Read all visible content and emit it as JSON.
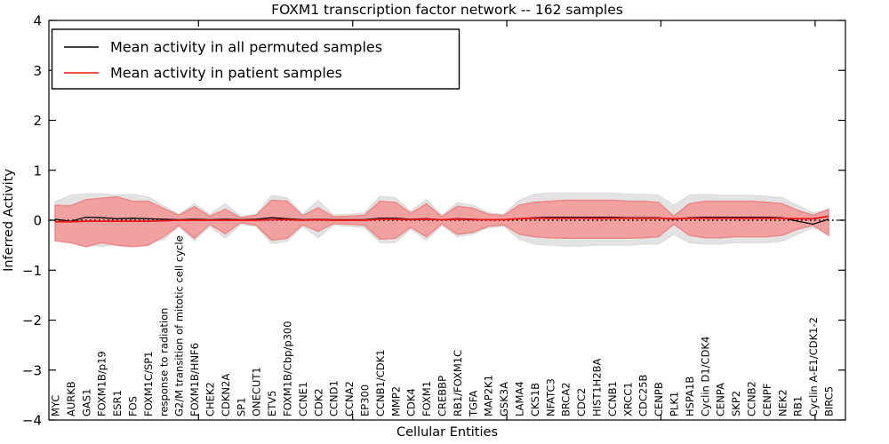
{
  "chart_data": {
    "type": "area",
    "title": "FOXM1 transcription factor network -- 162 samples",
    "xlabel": "Cellular Entities",
    "ylabel": "Inferred Activity",
    "ylim": [
      -4,
      4
    ],
    "yticks": [
      4,
      3,
      2,
      1,
      0,
      -1,
      -2,
      -3,
      -4
    ],
    "grid": false,
    "legend_position": "upper left",
    "zero_line": {
      "y": 0,
      "style": "dotted",
      "color": "#000000"
    },
    "colors": {
      "permuted_band": "#e3e3e3",
      "permuted_band_edge": "#d8d8d8",
      "patient_band": "#f2a1a1",
      "patient_band_edge": "#e98989",
      "permuted_line": "#000000",
      "patient_line": "#f01515"
    },
    "categories": [
      "MYC",
      "AURKB",
      "GAS1",
      "FOXM1B/p19",
      "ESR1",
      "FOS",
      "FOXM1C/SP1",
      "response to radiation",
      "G2/M transition of mitotic cell cycle",
      "FOXM1B/HNF6",
      "CHEK2",
      "CDKN2A",
      "SP1",
      "ONECUT1",
      "ETV5",
      "FOXM1B/Cbp/p300",
      "CCNE1",
      "CDK2",
      "CCND1",
      "CCNA2",
      "EP300",
      "CCNB1/CDK1",
      "MMP2",
      "CDK4",
      "FOXM1",
      "CREBBP",
      "RB1/FOXM1C",
      "TGFA",
      "MAP2K1",
      "GSK3A",
      "LAMA4",
      "CKS1B",
      "NFATC3",
      "BRCA2",
      "CDC2",
      "HIST1H2BA",
      "CCNB1",
      "XRCC1",
      "CDC25B",
      "CENPB",
      "PLK1",
      "HSPA1B",
      "Cyclin D1/CDK4",
      "CENPA",
      "SKP2",
      "CCNB2",
      "CENPF",
      "NEK2",
      "RB1",
      "Cyclin A-E1/CDK1-2",
      "BIRC5"
    ],
    "series": [
      {
        "name": "Permuted samples envelope",
        "kind": "band",
        "upper": [
          0.37,
          0.5,
          0.53,
          0.53,
          0.5,
          0.52,
          0.47,
          0.29,
          0.12,
          0.33,
          0.12,
          0.33,
          0.08,
          0.12,
          0.5,
          0.45,
          0.12,
          0.4,
          0.1,
          0.12,
          0.15,
          0.48,
          0.45,
          0.18,
          0.42,
          0.1,
          0.35,
          0.3,
          0.15,
          0.12,
          0.4,
          0.52,
          0.55,
          0.55,
          0.55,
          0.55,
          0.55,
          0.52,
          0.52,
          0.5,
          0.3,
          0.5,
          0.52,
          0.5,
          0.5,
          0.5,
          0.48,
          0.45,
          0.3,
          0.15,
          0.2
        ],
        "lower": [
          -0.32,
          -0.39,
          -0.48,
          -0.53,
          -0.48,
          -0.5,
          -0.45,
          -0.39,
          -0.13,
          -0.41,
          -0.12,
          -0.36,
          -0.08,
          -0.12,
          -0.47,
          -0.42,
          -0.12,
          -0.35,
          -0.1,
          -0.12,
          -0.15,
          -0.45,
          -0.45,
          -0.18,
          -0.4,
          -0.1,
          -0.33,
          -0.28,
          -0.15,
          -0.12,
          -0.38,
          -0.48,
          -0.5,
          -0.52,
          -0.52,
          -0.5,
          -0.5,
          -0.5,
          -0.48,
          -0.48,
          -0.28,
          -0.45,
          -0.48,
          -0.48,
          -0.45,
          -0.45,
          -0.45,
          -0.42,
          -0.28,
          -0.15,
          -0.25
        ]
      },
      {
        "name": "Patient samples envelope",
        "kind": "band",
        "upper": [
          0.3,
          0.29,
          0.41,
          0.44,
          0.47,
          0.38,
          0.38,
          0.24,
          0.1,
          0.27,
          0.08,
          0.22,
          0.05,
          0.1,
          0.4,
          0.38,
          0.09,
          0.25,
          0.07,
          0.08,
          0.1,
          0.38,
          0.36,
          0.14,
          0.33,
          0.07,
          0.28,
          0.24,
          0.12,
          0.09,
          0.3,
          0.36,
          0.38,
          0.4,
          0.4,
          0.4,
          0.4,
          0.38,
          0.38,
          0.36,
          0.08,
          0.33,
          0.38,
          0.38,
          0.38,
          0.38,
          0.36,
          0.33,
          0.2,
          0.1,
          0.22
        ],
        "lower": [
          -0.41,
          -0.45,
          -0.53,
          -0.45,
          -0.5,
          -0.53,
          -0.5,
          -0.33,
          -0.1,
          -0.36,
          -0.08,
          -0.27,
          -0.05,
          -0.1,
          -0.4,
          -0.36,
          -0.09,
          -0.22,
          -0.07,
          -0.08,
          -0.1,
          -0.38,
          -0.36,
          -0.14,
          -0.33,
          -0.07,
          -0.28,
          -0.24,
          -0.12,
          -0.09,
          -0.28,
          -0.33,
          -0.35,
          -0.36,
          -0.36,
          -0.36,
          -0.36,
          -0.36,
          -0.35,
          -0.33,
          -0.08,
          -0.3,
          -0.35,
          -0.35,
          -0.33,
          -0.33,
          -0.33,
          -0.3,
          -0.18,
          -0.1,
          -0.3
        ]
      },
      {
        "name": "Mean activity in all permuted samples",
        "kind": "line",
        "values": [
          0.02,
          -0.02,
          0.06,
          0.05,
          0.03,
          0.04,
          0.03,
          0.02,
          0.01,
          0.02,
          0.01,
          0.02,
          0.01,
          0.02,
          0.05,
          0.03,
          0.01,
          0.02,
          0.01,
          0.01,
          0.01,
          0.04,
          0.04,
          0.02,
          0.03,
          0.01,
          0.03,
          0.02,
          0.01,
          0.01,
          0.03,
          0.05,
          0.06,
          0.06,
          0.06,
          0.06,
          0.06,
          0.05,
          0.05,
          0.05,
          0.02,
          0.05,
          0.06,
          0.06,
          0.06,
          0.06,
          0.06,
          0.05,
          -0.02,
          -0.08,
          0.02
        ]
      },
      {
        "name": "Mean activity in patient samples",
        "kind": "line",
        "values": [
          -0.03,
          -0.03,
          -0.02,
          -0.02,
          -0.02,
          -0.02,
          -0.02,
          -0.01,
          0,
          0,
          0,
          0,
          0,
          0,
          0.01,
          0.01,
          0,
          0.01,
          0,
          0,
          0,
          0.02,
          0.02,
          0.01,
          0.02,
          0.01,
          0.02,
          0.01,
          0.01,
          0.01,
          0.03,
          0.04,
          0.04,
          0.04,
          0.04,
          0.04,
          0.04,
          0.04,
          0.04,
          0.04,
          0.03,
          0.04,
          0.04,
          0.04,
          0.04,
          0.04,
          0.04,
          0.04,
          0.03,
          0.03,
          0.08
        ]
      }
    ]
  }
}
